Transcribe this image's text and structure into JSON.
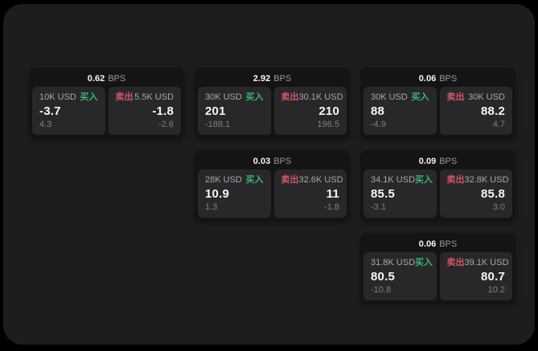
{
  "labels": {
    "bps_unit": "BPS",
    "buy": "买入",
    "sell": "卖出"
  },
  "colors": {
    "page_bg": "#000000",
    "panel_bg": "#1d1d1f",
    "card_bg": "#141415",
    "tile_bg": "#28282b",
    "accent_buy": "#3bb571",
    "accent_sell": "#d25666"
  },
  "cards": [
    {
      "row": 1,
      "col": 1,
      "bps": "0.62",
      "buy": {
        "size": "10K USD",
        "value": "-3.7",
        "sub": "4.3"
      },
      "sell": {
        "size": "5.5K USD",
        "value": "-1.8",
        "sub": "-2.6"
      }
    },
    {
      "row": 1,
      "col": 2,
      "bps": "2.92",
      "buy": {
        "size": "30K USD",
        "value": "201",
        "sub": "-188.1"
      },
      "sell": {
        "size": "30.1K USD",
        "value": "210",
        "sub": "196.5"
      }
    },
    {
      "row": 1,
      "col": 3,
      "bps": "0.06",
      "buy": {
        "size": "30K USD",
        "value": "88",
        "sub": "-4.9"
      },
      "sell": {
        "size": "30K USD",
        "value": "88.2",
        "sub": "4.7"
      }
    },
    {
      "row": 2,
      "col": 2,
      "bps": "0.03",
      "buy": {
        "size": "28K USD",
        "value": "10.9",
        "sub": "1.3"
      },
      "sell": {
        "size": "32.6K USD",
        "value": "11",
        "sub": "-1.8"
      }
    },
    {
      "row": 2,
      "col": 3,
      "bps": "0.09",
      "buy": {
        "size": "34.1K USD",
        "value": "85.5",
        "sub": "-3.1"
      },
      "sell": {
        "size": "32.8K USD",
        "value": "85.8",
        "sub": "3.0"
      }
    },
    {
      "row": 3,
      "col": 3,
      "bps": "0.06",
      "buy": {
        "size": "31.8K USD",
        "value": "80.5",
        "sub": "-10.8"
      },
      "sell": {
        "size": "39.1K USD",
        "value": "80.7",
        "sub": "10.2"
      }
    }
  ]
}
